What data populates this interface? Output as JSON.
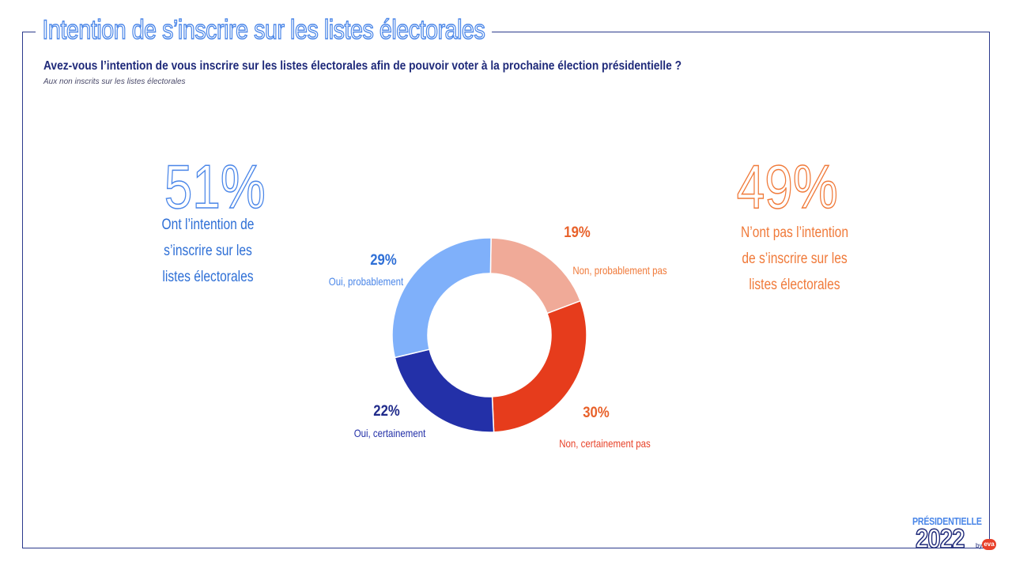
{
  "header": {
    "title": "Intention de s’inscrire sur les listes électorales",
    "question": "Avez-vous l’intention de vous inscrire sur les listes électorales afin de pouvoir voter à la prochaine élection présidentielle ?",
    "base": "Aux non inscrits sur les listes électorales"
  },
  "summary": {
    "left": {
      "value": "51%",
      "text": [
        "Ont l’intention de",
        "s’inscrire sur les",
        "listes électorales"
      ]
    },
    "right": {
      "value": "49%",
      "text": [
        "N’ont pas l’intention",
        "de s’inscrire sur les",
        "listes électorales"
      ]
    }
  },
  "chart_data": {
    "type": "pie",
    "donut": true,
    "title": "",
    "slices": [
      {
        "label": "Non, probablement pas",
        "value": 19,
        "display": "19%",
        "color": "#f0aa98",
        "pct_color": "#e8612a",
        "label_color": "#f07a3a"
      },
      {
        "label": "Non, certainement pas",
        "value": 30,
        "display": "30%",
        "color": "#e63c1c",
        "pct_color": "#e8612a",
        "label_color": "#e8432a"
      },
      {
        "label": "Oui, certainement",
        "value": 22,
        "display": "22%",
        "color": "#2330a8",
        "pct_color": "#1f2a8a",
        "label_color": "#2330a8"
      },
      {
        "label": "Oui, probablement",
        "value": 29,
        "display": "29%",
        "color": "#7fb0fa",
        "pct_color": "#2e6fd6",
        "label_color": "#4a86e8"
      }
    ]
  },
  "logo": {
    "top": "PRÉSIDENTIELLE",
    "year": "2022",
    "by": "by",
    "brand": "eva"
  },
  "colors": {
    "frame": "#2b3a8c",
    "blue_accent": "#4a86e8",
    "orange_accent": "#f07a3a",
    "navy": "#1f2a7a"
  }
}
